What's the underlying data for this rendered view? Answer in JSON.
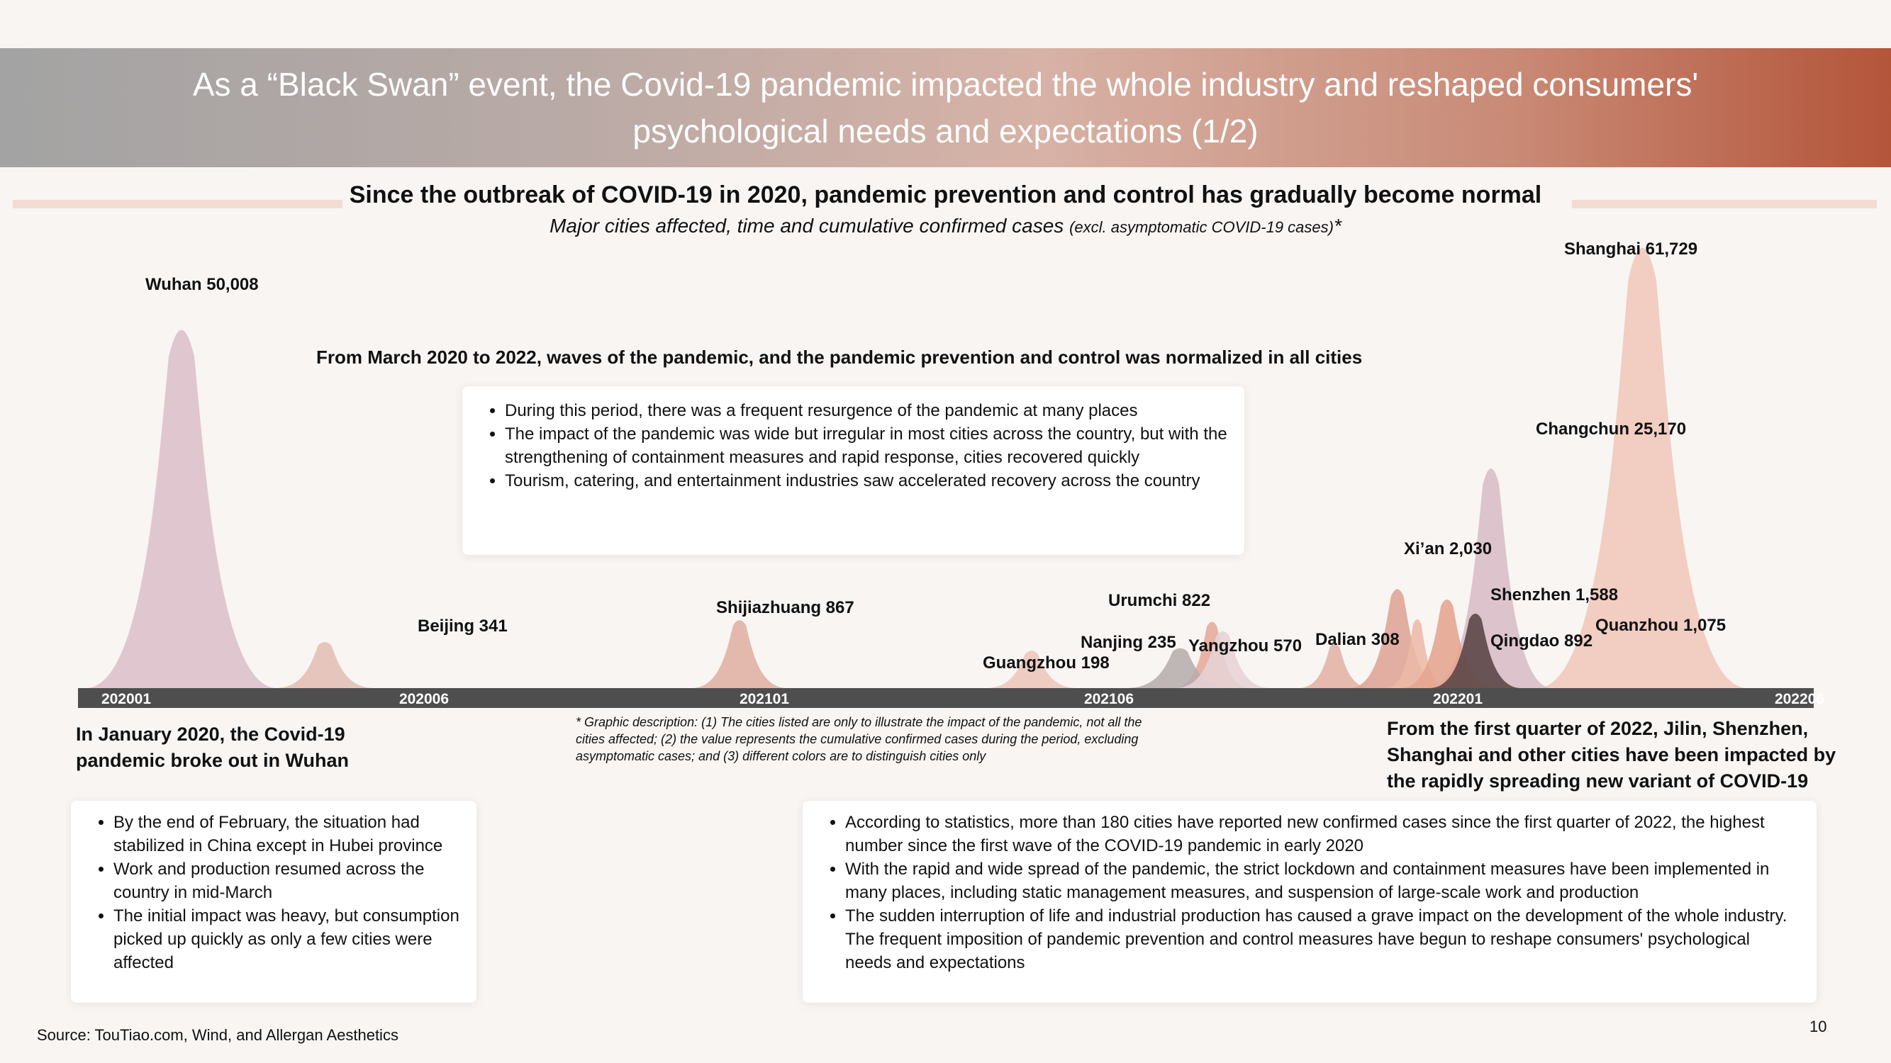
{
  "title": "As a “Black Swan” event, the Covid-19 pandemic impacted the whole industry and reshaped consumers' psychological needs and expectations (1/2)",
  "subtitle": "Since the outbreak of COVID-19 in 2020, pandemic prevention and control has gradually become normal",
  "subnote_main": "Major cities affected, time and cumulative confirmed cases ",
  "subnote_small": "(excl. asymptomatic COVID-19 cases)",
  "subnote_star": "*",
  "mid_headline": "From March 2020 to 2022,  waves of the pandemic, and the pandemic prevention and control was normalized in all cities",
  "mid_bullets": [
    "During this period, there was a frequent resurgence of the pandemic at many places",
    "The impact of the pandemic was wide but irregular in most cities across the country, but with the strengthening of containment measures and rapid response, cities recovered quickly",
    "Tourism, catering, and entertainment industries saw accelerated recovery across the country"
  ],
  "left_heading": "In January 2020, the Covid-19 pandemic broke out in Wuhan",
  "left_bullets": [
    "By the end of February, the situation had stabilized in China except in Hubei province",
    "Work and production resumed across the country in mid-March",
    "The initial impact was heavy, but consumption picked up quickly as only a few cities were affected"
  ],
  "right_heading": "From the first quarter of 2022, Jilin, Shenzhen, Shanghai and other cities have been impacted by the rapidly spreading new variant of COVID-19",
  "right_bullets": [
    "According to statistics, more than 180 cities have reported new confirmed cases since the first quarter of 2022, the highest number since the first wave of the COVID-19 pandemic in early 2020",
    "With the rapid and wide spread of the pandemic, the strict lockdown and containment measures have been implemented in many places, including static management measures, and suspension of large-scale work and production",
    "The sudden interruption of life and industrial production has caused a grave impact on the development of the whole industry. The frequent imposition of pandemic prevention and control measures have begun to reshape consumers' psychological needs and expectations"
  ],
  "graphic_description": "* Graphic description: (1) The cities listed are only to illustrate the impact of the pandemic, not all the cities affected; (2) the value represents the cumulative confirmed cases during the period, excluding asymptomatic cases; and (3) different colors are to distinguish cities only",
  "source": "Source: TouTiao.com, Wind, and Allergan Aesthetics",
  "page_number": "10",
  "chart_data": {
    "type": "area",
    "x_axis_ticks": [
      "202001",
      "202006",
      "202101",
      "202106",
      "202201",
      "202206"
    ],
    "x_range": [
      "2020-01",
      "2022-06"
    ],
    "points": [
      {
        "city": "Wuhan",
        "value": 50008,
        "label": "Wuhan 50,008",
        "date": "2020-01",
        "color": "#dcc0c9"
      },
      {
        "city": "Beijing",
        "value": 341,
        "label": "Beijing 341",
        "date": "2020-06",
        "color": "#e3bfb4"
      },
      {
        "city": "Shijiazhuang",
        "value": 867,
        "label": "Shijiazhuang 867",
        "date": "2021-01",
        "color": "#e0b0a3"
      },
      {
        "city": "Guangzhou",
        "value": 198,
        "label": "Guangzhou 198",
        "date": "2021-05",
        "color": "#ecc6bb"
      },
      {
        "city": "Nanjing",
        "value": 235,
        "label": "Nanjing 235",
        "date": "2021-07",
        "color": "#b6adad"
      },
      {
        "city": "Urumchi",
        "value": 822,
        "label": "Urumchi 822",
        "date": "2021-07",
        "color": "#e4aa99"
      },
      {
        "city": "Yangzhou",
        "value": 570,
        "label": "Yangzhou 570",
        "date": "2021-08",
        "color": "#e7d3d6"
      },
      {
        "city": "Dalian",
        "value": 308,
        "label": "Dalian 308",
        "date": "2021-11",
        "color": "#e2b2a5"
      },
      {
        "city": "Xi’an",
        "value": 2030,
        "label": "Xi’an 2,030",
        "date": "2021-12",
        "color": "#dea495"
      },
      {
        "city": "Shenzhen",
        "value": 1588,
        "label": "Shenzhen 1,588",
        "date": "2022-03",
        "color": "#e5a48f"
      },
      {
        "city": "Qingdao",
        "value": 892,
        "label": "Qingdao 892",
        "date": "2022-03",
        "color": "#ecbaa8"
      },
      {
        "city": "Changchun",
        "value": 25170,
        "label": "Changchun 25,170",
        "date": "2022-03",
        "color": "#d8bcc6"
      },
      {
        "city": "Quanzhou",
        "value": 1075,
        "label": "Quanzhou 1,075",
        "date": "2022-03",
        "color": "#5f4a4a"
      },
      {
        "city": "Shanghai",
        "value": 61729,
        "label": "Shanghai 61,729",
        "date": "2022-04",
        "color": "#f0c7b9"
      }
    ]
  }
}
